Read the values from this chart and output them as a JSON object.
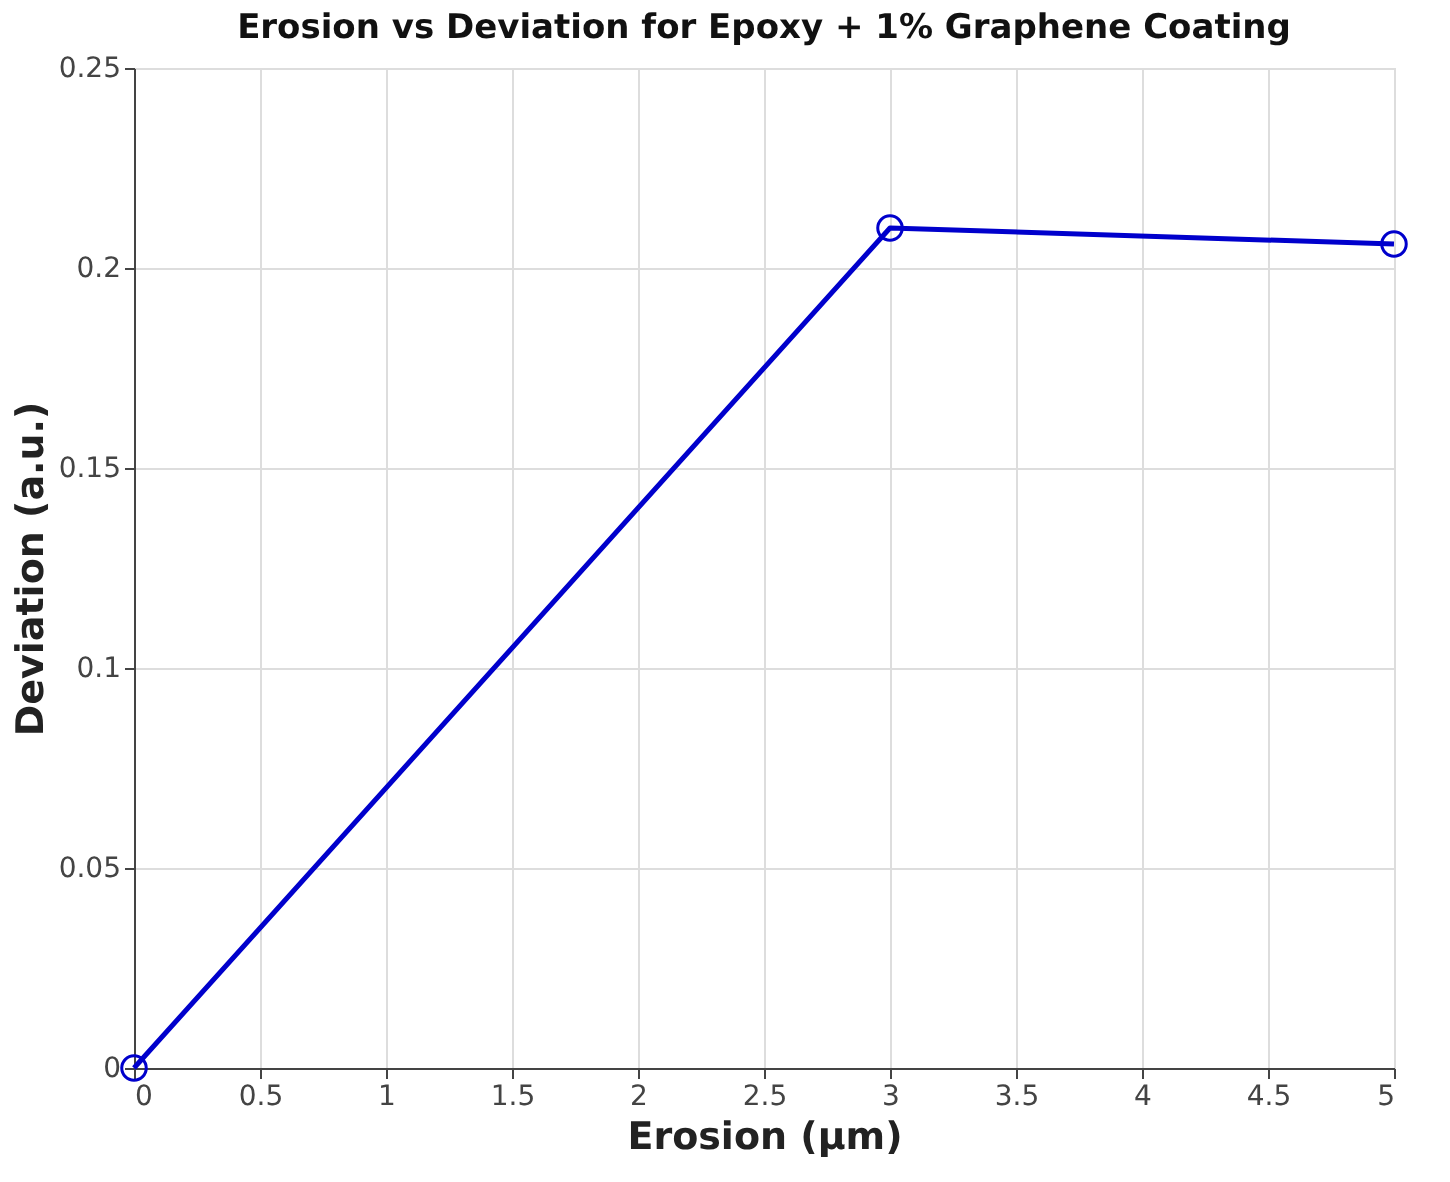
{
  "chart_data": {
    "type": "line",
    "title": "Erosion vs Deviation for Epoxy + 1% Graphene Coating",
    "xlabel": "Erosion (μm)",
    "ylabel": "Deviation (a.u.)",
    "x": [
      0,
      3,
      5
    ],
    "series": [
      {
        "color": "#0000cc",
        "values": [
          0,
          0.21,
          0.206
        ]
      }
    ],
    "xlim": [
      0,
      5
    ],
    "xticks": [
      0,
      0.5,
      1,
      1.5,
      2,
      2.5,
      3,
      3.5,
      4,
      4.5,
      5
    ],
    "ylim": [
      0,
      0.25
    ],
    "yticks": [
      0,
      0.05,
      0.1,
      0.15,
      0.2,
      0.25
    ],
    "grid": true,
    "marker": "circle",
    "line_style": "solid"
  }
}
